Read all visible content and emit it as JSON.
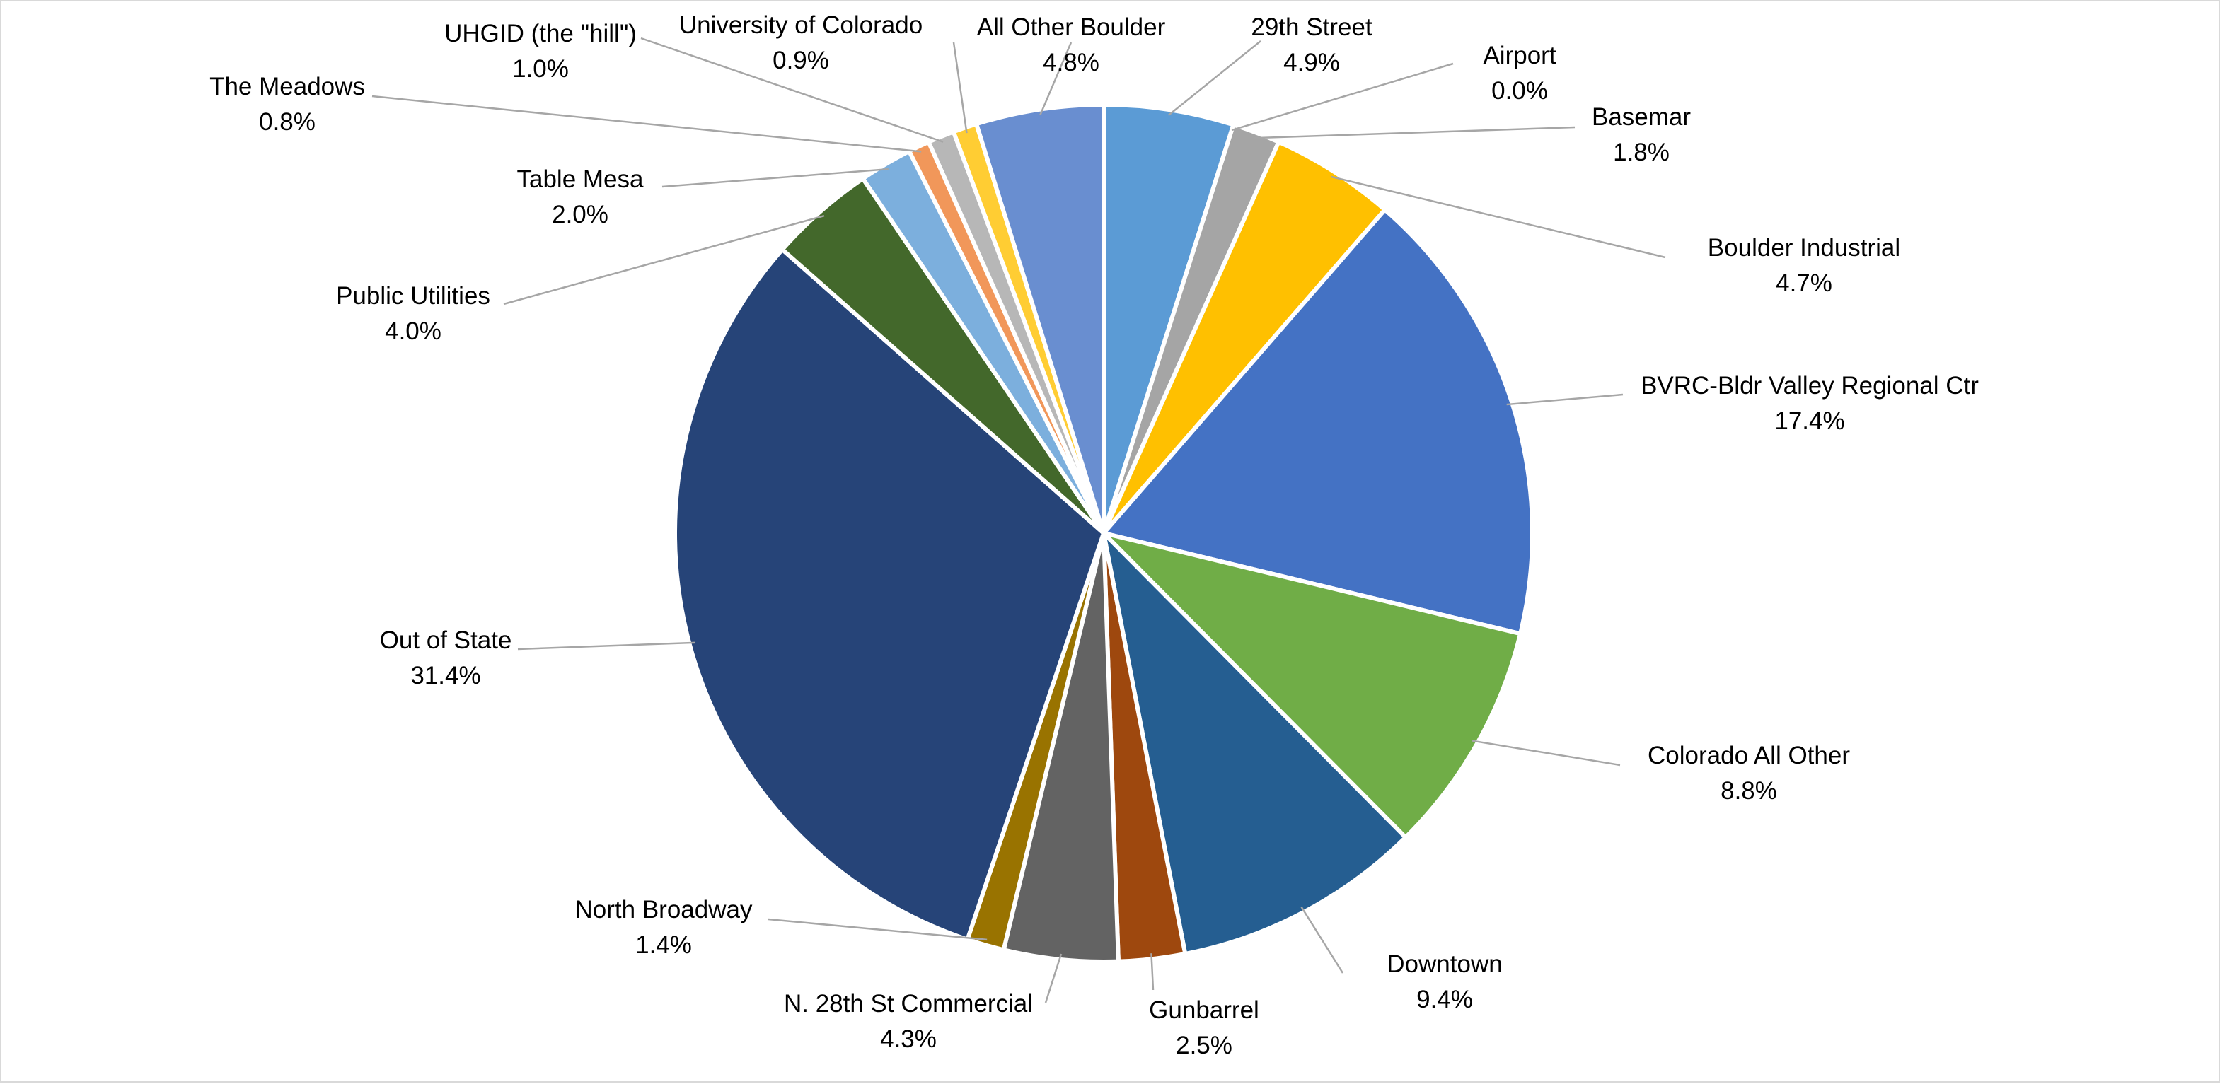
{
  "chart_data": {
    "type": "pie",
    "title": "",
    "slices": [
      {
        "name": "29th Street",
        "value": 4.9,
        "label": "4.9%",
        "color": "#5b9bd5"
      },
      {
        "name": "Airport",
        "value": 0.0,
        "label": "0.0%",
        "color": "#a5a5a5"
      },
      {
        "name": "Basemar",
        "value": 1.8,
        "label": "1.8%",
        "color": "#a5a5a5"
      },
      {
        "name": "Boulder Industrial",
        "value": 4.7,
        "label": "4.7%",
        "color": "#ffc000"
      },
      {
        "name": "BVRC-Bldr Valley Regional Ctr",
        "value": 17.4,
        "label": "17.4%",
        "color": "#4472c4"
      },
      {
        "name": "Colorado All Other",
        "value": 8.8,
        "label": "8.8%",
        "color": "#70ad47"
      },
      {
        "name": "Downtown",
        "value": 9.4,
        "label": "9.4%",
        "color": "#255e91"
      },
      {
        "name": "Gunbarrel",
        "value": 2.5,
        "label": "2.5%",
        "color": "#9e480e"
      },
      {
        "name": "N. 28th St Commercial",
        "value": 4.3,
        "label": "4.3%",
        "color": "#636363"
      },
      {
        "name": "North Broadway",
        "value": 1.4,
        "label": "1.4%",
        "color": "#997300"
      },
      {
        "name": "Out of State",
        "value": 31.4,
        "label": "31.4%",
        "color": "#264478"
      },
      {
        "name": "Public Utilities",
        "value": 4.0,
        "label": "4.0%",
        "color": "#43682b"
      },
      {
        "name": "Table Mesa",
        "value": 2.0,
        "label": "2.0%",
        "color": "#7cafdd"
      },
      {
        "name": "The Meadows",
        "value": 0.8,
        "label": "0.8%",
        "color": "#f1975a"
      },
      {
        "name": "UHGID (the \"hill\")",
        "value": 1.0,
        "label": "1.0%",
        "color": "#b7b7b7"
      },
      {
        "name": "University of Colorado",
        "value": 0.9,
        "label": "0.9%",
        "color": "#ffcd33"
      },
      {
        "name": "All Other Boulder",
        "value": 4.8,
        "label": "4.8%",
        "color": "#698ed0"
      }
    ],
    "legend": "none",
    "data_labels": "category name and percentage with leader lines"
  }
}
